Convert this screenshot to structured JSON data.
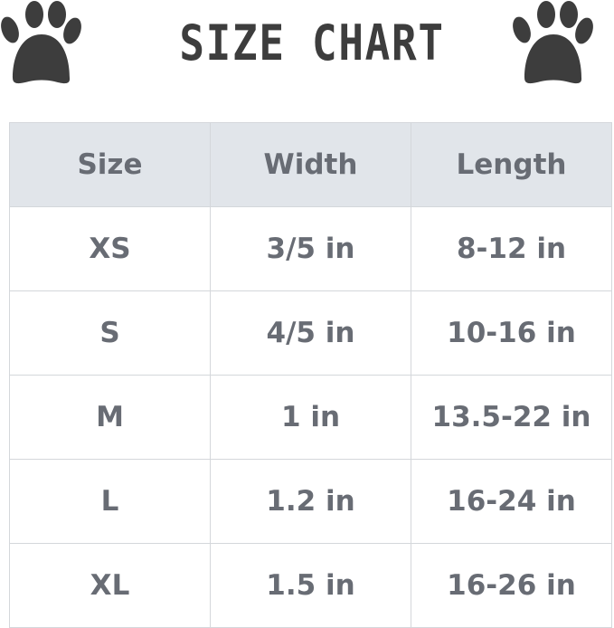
{
  "title": "SIZE CHART",
  "icons": {
    "left": "paw-print-icon",
    "right": "paw-print-icon"
  },
  "colors": {
    "header_bg": "#e1e5ea",
    "text": "#686c74",
    "icon": "#3d3d3d",
    "grid": "#d4d7db"
  },
  "table": {
    "headers": [
      "Size",
      "Width",
      "Length"
    ],
    "rows": [
      [
        "XS",
        "3/5 in",
        "8-12 in"
      ],
      [
        "S",
        "4/5 in",
        "10-16 in"
      ],
      [
        "M",
        "1 in",
        "13.5-22 in"
      ],
      [
        "L",
        "1.2 in",
        "16-24 in"
      ],
      [
        "XL",
        "1.5 in",
        "16-26 in"
      ]
    ]
  }
}
